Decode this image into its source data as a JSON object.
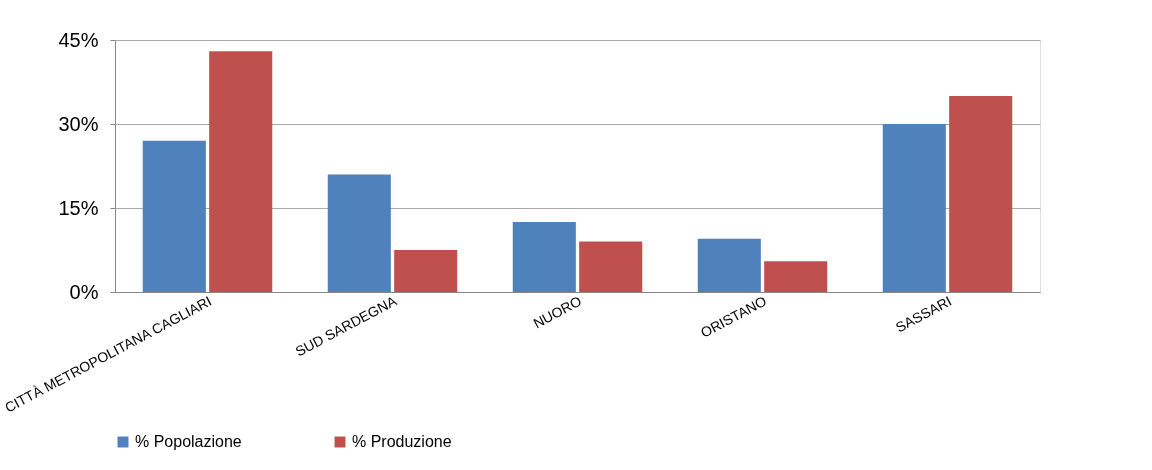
{
  "chart_data": {
    "type": "bar",
    "categories": [
      "CITTÀ METROPOLITANA CAGLIARI",
      "SUD SARDEGNA",
      "NUORO",
      "ORISTANO",
      "SASSARI"
    ],
    "series": [
      {
        "name": "% Popolazione",
        "color": "#4f81bd",
        "values": [
          27,
          21,
          12.5,
          9.5,
          30
        ]
      },
      {
        "name": "% Produzione",
        "color": "#c0504d",
        "values": [
          43,
          7.5,
          9,
          5.5,
          35
        ]
      }
    ],
    "ylim": [
      0,
      45
    ],
    "yticks": [
      {
        "value": 0,
        "label": "0%"
      },
      {
        "value": 15,
        "label": "15%"
      },
      {
        "value": 30,
        "label": "30%"
      },
      {
        "value": 45,
        "label": "45%"
      }
    ],
    "grid": "y",
    "legend": "bottom"
  }
}
